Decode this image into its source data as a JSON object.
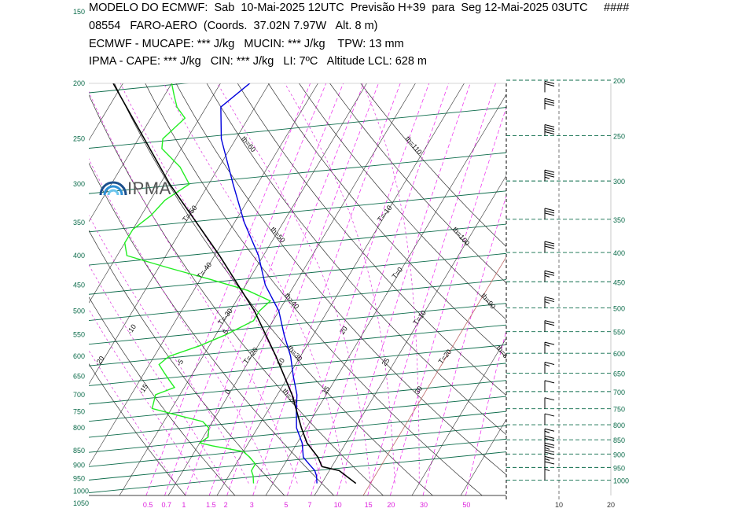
{
  "header": {
    "line1": "MODELO DO ECMWF:  Sab  10-Mai-2025 12UTC  Previsão H+39  para  Seg 12-Mai-2025 03UTC",
    "hash": "####",
    "line2": "08554   FARO-AERO  (Coords.  37.02N 7.97W   Alt. 8 m)",
    "line3": "ECMWF - MUCAPE: *** J/kg   MUCIN: *** J/kg    TPW: 13 mm",
    "line4": "IPMA - CAPE: *** J/kg   CIN: *** J/kg   LI: 7ºC   Altitude LCL: 628 m"
  },
  "logo": {
    "text": "IPMA",
    "icon": "ipma-rainbow-icon"
  },
  "chart_data": {
    "type": "line",
    "chart_kind": "skew-T log-P thermodynamic diagram",
    "pressure_range_hPa": [
      1050,
      200
    ],
    "pressure_labels_left": [
      "150",
      "200",
      "250",
      "300",
      "350",
      "400",
      "450",
      "500",
      "550",
      "600",
      "650",
      "700",
      "750",
      "800",
      "850",
      "900",
      "950",
      "1000",
      "1050"
    ],
    "pressure_labels_right": [
      "200",
      "250",
      "300",
      "350",
      "400",
      "450",
      "500",
      "550",
      "600",
      "650",
      "700",
      "750",
      "800",
      "850",
      "900",
      "950",
      "1000"
    ],
    "mixing_ratio_labels": [
      "0.5",
      "0.7",
      "1",
      "1.5",
      "2",
      "3",
      "5",
      "7",
      "10",
      "15",
      "20",
      "30",
      "50"
    ],
    "wind_axis_labels": [
      "10",
      "20"
    ],
    "isotherm_labels": [
      "T=-90",
      "T=-80",
      "T=-70",
      "T=-60",
      "T=-50",
      "T=-40",
      "T=-30",
      "T=-20",
      "T=-10",
      "T=0",
      "T=10",
      "T=20",
      "T=30",
      "T=40"
    ],
    "isotherm_values": [
      -90,
      -80,
      -70,
      -60,
      -50,
      -40,
      -30,
      -20,
      -10,
      0,
      10,
      20,
      30,
      40
    ],
    "dry_adiabat_labels": [
      "th=110",
      "th=100",
      "th=90",
      "th=80",
      "th=70",
      "th=60",
      "th=50",
      "th=40",
      "th=30",
      "th=20",
      "th=10",
      "th=0",
      "th=-10",
      "th=-20"
    ],
    "dry_adiabat_values": [
      110,
      100,
      90,
      80,
      70,
      60,
      50,
      40,
      30,
      20,
      10,
      0,
      -10,
      -20
    ],
    "moist_adiabat_labels": [
      "30",
      "25",
      "20",
      "15",
      "10",
      "5",
      "0",
      "-5",
      "-10",
      "-15",
      "-20"
    ],
    "moist_adiabat_values": [
      30,
      25,
      20,
      15,
      10,
      5,
      0,
      -5,
      -10,
      -15,
      -20
    ],
    "series": [
      {
        "name": "",
        "color": "#0000dd",
        "points": [
          [
            1000,
            9
          ],
          [
            970,
            8
          ],
          [
            950,
            7
          ],
          [
            925,
            5
          ],
          [
            900,
            3
          ],
          [
            850,
            1
          ],
          [
            800,
            -2
          ],
          [
            750,
            -4
          ],
          [
            700,
            -6
          ],
          [
            650,
            -9
          ],
          [
            600,
            -12
          ],
          [
            550,
            -16
          ],
          [
            500,
            -20
          ],
          [
            450,
            -26
          ],
          [
            400,
            -31
          ],
          [
            350,
            -38
          ],
          [
            300,
            -45
          ],
          [
            250,
            -53
          ],
          [
            220,
            -57
          ],
          [
            200,
            -54
          ],
          [
            180,
            -54
          ],
          [
            160,
            -54
          ]
        ]
      },
      {
        "name": "",
        "color": "#22ee22",
        "points": [
          [
            1000,
            -4
          ],
          [
            970,
            -5
          ],
          [
            950,
            -6
          ],
          [
            925,
            -6
          ],
          [
            900,
            -8
          ],
          [
            880,
            -10
          ],
          [
            860,
            -17
          ],
          [
            850,
            -20
          ],
          [
            830,
            -19
          ],
          [
            800,
            -20
          ],
          [
            780,
            -22
          ],
          [
            760,
            -28
          ],
          [
            740,
            -34
          ],
          [
            700,
            -35
          ],
          [
            680,
            -32
          ],
          [
            660,
            -34
          ],
          [
            640,
            -36
          ],
          [
            620,
            -38
          ],
          [
            600,
            -37
          ],
          [
            575,
            -32
          ],
          [
            550,
            -28
          ],
          [
            520,
            -24
          ],
          [
            500,
            -24
          ],
          [
            480,
            -23
          ],
          [
            460,
            -29
          ],
          [
            440,
            -38
          ],
          [
            420,
            -48
          ],
          [
            400,
            -58
          ],
          [
            380,
            -60
          ],
          [
            360,
            -60
          ],
          [
            340,
            -58
          ],
          [
            320,
            -57
          ],
          [
            300,
            -54
          ],
          [
            280,
            -58
          ],
          [
            260,
            -64
          ],
          [
            250,
            -65
          ],
          [
            230,
            -63
          ],
          [
            220,
            -66
          ],
          [
            210,
            -68
          ],
          [
            200,
            -70
          ],
          [
            190,
            -72
          ],
          [
            180,
            -77
          ],
          [
            170,
            -79
          ],
          [
            160,
            -80
          ],
          [
            150,
            -80
          ],
          [
            140,
            -81
          ],
          [
            130,
            -82
          ],
          [
            120,
            -85
          ],
          [
            110,
            -87
          ]
        ]
      },
      {
        "name": "",
        "color": "#000000",
        "points": [
          [
            1000,
            17
          ],
          [
            950,
            12
          ],
          [
            935,
            8
          ],
          [
            900,
            6
          ],
          [
            850,
            2
          ],
          [
            800,
            -1
          ],
          [
            700,
            -7
          ],
          [
            600,
            -15
          ],
          [
            500,
            -25
          ],
          [
            400,
            -39
          ],
          [
            300,
            -58
          ],
          [
            200,
            -82
          ]
        ]
      }
    ],
    "winds": [
      {
        "p": 1000,
        "spd": 5
      },
      {
        "p": 970,
        "spd": 10
      },
      {
        "p": 950,
        "spd": 15
      },
      {
        "p": 925,
        "spd": 20
      },
      {
        "p": 900,
        "spd": 25
      },
      {
        "p": 875,
        "spd": 20
      },
      {
        "p": 850,
        "spd": 15
      },
      {
        "p": 800,
        "spd": 10
      },
      {
        "p": 750,
        "spd": 10
      },
      {
        "p": 700,
        "spd": 10
      },
      {
        "p": 650,
        "spd": 15
      },
      {
        "p": 600,
        "spd": 15
      },
      {
        "p": 550,
        "spd": 20
      },
      {
        "p": 500,
        "spd": 25
      },
      {
        "p": 450,
        "spd": 25
      },
      {
        "p": 400,
        "spd": 30
      },
      {
        "p": 350,
        "spd": 30
      },
      {
        "p": 300,
        "spd": 35
      },
      {
        "p": 250,
        "spd": 40
      },
      {
        "p": 225,
        "spd": 30
      },
      {
        "p": 210,
        "spd": 20
      }
    ]
  }
}
